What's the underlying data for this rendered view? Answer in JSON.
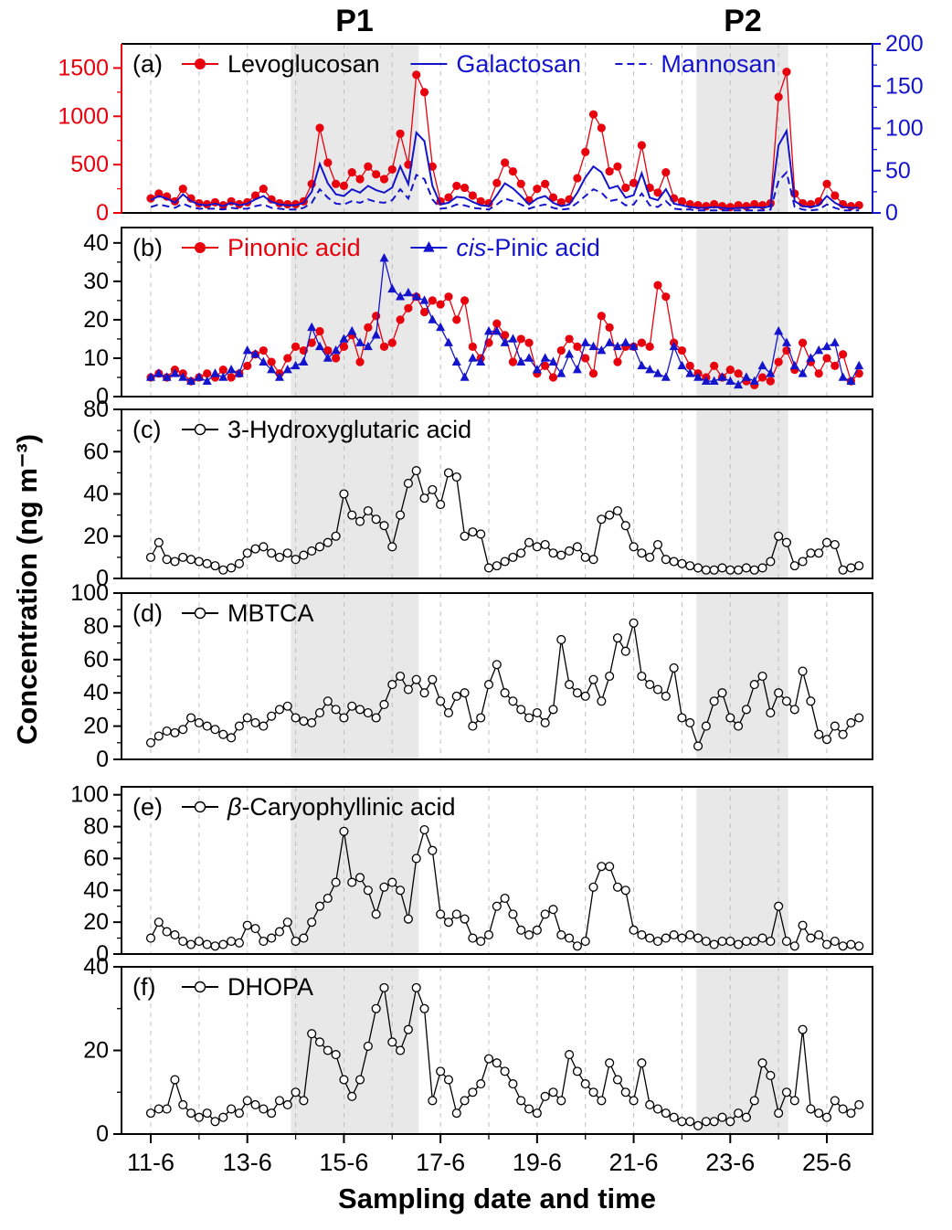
{
  "figure": {
    "p1_label": "P1",
    "p2_label": "P2",
    "y_axis_label": "Concentration (ng m⁻³)",
    "x_axis_label": "Sampling date and time"
  },
  "chart_data": {
    "type": "line",
    "title": "",
    "xlabel": "Sampling date and time",
    "ylabel": "Concentration (ng m⁻³)",
    "x_unit": "days since 11-6",
    "x_tick_labels": [
      "11-6",
      "13-6",
      "15-6",
      "17-6",
      "19-6",
      "21-6",
      "23-6",
      "25-6"
    ],
    "x_tick_days": [
      0,
      2,
      4,
      6,
      8,
      10,
      12,
      14
    ],
    "grid": "vertical-dashed-daily",
    "sampling": {
      "x_start_day": 0,
      "x_step_days": 0.16667,
      "n": 89
    },
    "shaded_periods": [
      {
        "label": "P1",
        "from_day": 2.9,
        "to_day": 5.55
      },
      {
        "label": "P2",
        "from_day": 11.3,
        "to_day": 13.2
      }
    ],
    "colors": {
      "red": "#e8000d",
      "blue": "#1414cc",
      "grid": "#bfbfbf",
      "shade": "#e8e8e8"
    },
    "panels": [
      {
        "id": "a",
        "label": "(a)",
        "ylim": [
          0,
          1750
        ],
        "yticks": [
          0,
          500,
          1000,
          1500
        ],
        "axis_color": "#e8000d",
        "right": {
          "ylim": [
            0,
            200
          ],
          "yticks": [
            0,
            50,
            100,
            150,
            200
          ],
          "color": "#1414cc"
        },
        "series": [
          {
            "name": "Levoglucosan",
            "axis": "left",
            "color": "#e8000d",
            "label_color": "#000000",
            "marker": "circle",
            "line": true,
            "values": [
              150,
              200,
              170,
              120,
              250,
              150,
              100,
              90,
              110,
              80,
              120,
              90,
              110,
              180,
              250,
              140,
              100,
              90,
              90,
              120,
              300,
              880,
              520,
              300,
              280,
              420,
              350,
              480,
              400,
              350,
              450,
              820,
              500,
              1430,
              1250,
              480,
              120,
              160,
              280,
              260,
              180,
              120,
              100,
              310,
              520,
              430,
              300,
              130,
              250,
              300,
              160,
              110,
              140,
              360,
              630,
              1020,
              880,
              430,
              480,
              260,
              310,
              700,
              260,
              210,
              420,
              150,
              120,
              90,
              80,
              70,
              90,
              70,
              60,
              80,
              70,
              90,
              80,
              100,
              1200,
              1460,
              200,
              100,
              90,
              120,
              300,
              180,
              90,
              70,
              80
            ]
          },
          {
            "name": "Galactosan",
            "axis": "right",
            "color": "#1414cc",
            "label_color": "#1414cc",
            "marker": "none",
            "line": true,
            "values": [
              15,
              20,
              17,
              12,
              22,
              14,
              10,
              9,
              11,
              8,
              12,
              9,
              11,
              16,
              20,
              13,
              10,
              9,
              9,
              12,
              25,
              58,
              35,
              22,
              20,
              28,
              24,
              32,
              27,
              24,
              30,
              55,
              34,
              95,
              85,
              32,
              10,
              12,
              19,
              18,
              13,
              9,
              8,
              21,
              35,
              29,
              20,
              10,
              17,
              20,
              12,
              8,
              10,
              24,
              42,
              55,
              48,
              29,
              32,
              18,
              21,
              47,
              18,
              15,
              28,
              11,
              9,
              7,
              6,
              6,
              7,
              6,
              5,
              6,
              6,
              7,
              6,
              8,
              80,
              97,
              14,
              8,
              7,
              9,
              20,
              12,
              7,
              6,
              6
            ]
          },
          {
            "name": "Mannosan",
            "axis": "right",
            "color": "#1414cc",
            "label_color": "#1414cc",
            "marker": "none",
            "line": true,
            "dash": "8,5",
            "values": [
              7,
              10,
              8,
              6,
              11,
              7,
              5,
              5,
              5,
              4,
              6,
              5,
              5,
              8,
              10,
              6,
              5,
              4,
              4,
              6,
              12,
              28,
              18,
              11,
              10,
              14,
              12,
              16,
              13,
              12,
              15,
              28,
              17,
              45,
              40,
              16,
              5,
              6,
              10,
              9,
              6,
              5,
              4,
              10,
              17,
              14,
              10,
              5,
              8,
              10,
              6,
              4,
              5,
              12,
              20,
              28,
              24,
              14,
              16,
              9,
              10,
              23,
              9,
              7,
              14,
              5,
              4,
              4,
              3,
              3,
              3,
              3,
              3,
              3,
              3,
              3,
              3,
              4,
              38,
              48,
              7,
              4,
              3,
              4,
              10,
              6,
              3,
              3,
              3
            ]
          }
        ]
      },
      {
        "id": "b",
        "label": "(b)",
        "ylim": [
          0,
          44
        ],
        "yticks": [
          0,
          10,
          20,
          30,
          40
        ],
        "series": [
          {
            "name": "Pinonic acid",
            "color": "#e8000d",
            "label_color": "#e8000d",
            "marker": "circle",
            "line": true,
            "values": [
              5,
              6,
              5,
              7,
              6,
              4,
              5,
              6,
              5,
              7,
              5,
              6,
              8,
              11,
              12,
              9,
              6,
              10,
              13,
              12,
              14,
              17,
              12,
              10,
              13,
              16,
              9,
              18,
              21,
              13,
              14,
              20,
              23,
              26,
              22,
              25,
              24,
              26,
              20,
              25,
              13,
              10,
              14,
              19,
              16,
              9,
              15,
              14,
              6,
              8,
              5,
              12,
              15,
              13,
              10,
              6,
              21,
              18,
              9,
              13,
              13,
              14,
              13,
              29,
              26,
              14,
              12,
              8,
              6,
              5,
              8,
              5,
              7,
              6,
              4,
              3,
              5,
              4,
              9,
              12,
              7,
              14,
              9,
              6,
              10,
              8,
              11,
              4,
              6
            ]
          },
          {
            "name": "cis-Pinic acid",
            "legend_italic_prefix": "cis",
            "color": "#1414cc",
            "label_color": "#1414cc",
            "marker": "triangle",
            "line": true,
            "values": [
              5,
              6,
              5,
              6,
              5,
              4,
              5,
              4,
              6,
              5,
              7,
              6,
              12,
              11,
              9,
              7,
              5,
              7,
              8,
              9,
              18,
              13,
              10,
              12,
              15,
              17,
              14,
              13,
              16,
              36,
              28,
              26,
              27,
              26,
              25,
              20,
              18,
              14,
              9,
              5,
              10,
              9,
              17,
              17,
              14,
              15,
              9,
              10,
              7,
              10,
              9,
              6,
              11,
              7,
              14,
              13,
              12,
              14,
              13,
              14,
              13,
              8,
              7,
              6,
              5,
              13,
              8,
              6,
              5,
              4,
              4,
              5,
              4,
              3,
              5,
              4,
              8,
              6,
              17,
              14,
              8,
              6,
              10,
              12,
              13,
              14,
              5,
              4,
              8
            ]
          }
        ]
      },
      {
        "id": "c",
        "label": "(c)",
        "ylim": [
          0,
          80
        ],
        "yticks": [
          0,
          20,
          40,
          60,
          80
        ],
        "series": [
          {
            "name": "3-Hydroxyglutaric acid",
            "color": "#000000",
            "label_color": "#000000",
            "marker": "open-circle",
            "line": true,
            "values": [
              10,
              17,
              9,
              8,
              10,
              9,
              8,
              7,
              6,
              4,
              5,
              7,
              12,
              14,
              15,
              12,
              10,
              12,
              9,
              11,
              13,
              15,
              17,
              20,
              40,
              30,
              27,
              32,
              28,
              25,
              15,
              30,
              45,
              51,
              38,
              42,
              35,
              50,
              48,
              20,
              22,
              21,
              5,
              6,
              8,
              10,
              12,
              17,
              15,
              16,
              12,
              11,
              13,
              15,
              10,
              9,
              28,
              30,
              32,
              25,
              15,
              12,
              10,
              16,
              9,
              8,
              7,
              6,
              5,
              4,
              4,
              5,
              4,
              4,
              5,
              4,
              5,
              8,
              20,
              17,
              6,
              8,
              12,
              12,
              17,
              16,
              4,
              5,
              6
            ]
          }
        ]
      },
      {
        "id": "d",
        "label": "(d)",
        "ylim": [
          0,
          100
        ],
        "yticks": [
          0,
          20,
          40,
          60,
          80,
          100
        ],
        "series": [
          {
            "name": "MBTCA",
            "color": "#000000",
            "label_color": "#000000",
            "marker": "open-circle",
            "line": true,
            "values": [
              10,
              14,
              17,
              16,
              18,
              25,
              22,
              20,
              18,
              15,
              13,
              20,
              25,
              22,
              20,
              26,
              30,
              32,
              25,
              23,
              22,
              28,
              35,
              30,
              25,
              32,
              30,
              28,
              25,
              33,
              45,
              50,
              42,
              48,
              40,
              48,
              35,
              28,
              38,
              40,
              20,
              25,
              45,
              57,
              40,
              35,
              30,
              25,
              28,
              22,
              30,
              72,
              45,
              40,
              38,
              48,
              35,
              50,
              73,
              65,
              82,
              50,
              45,
              42,
              38,
              55,
              25,
              22,
              8,
              20,
              35,
              40,
              25,
              20,
              30,
              45,
              50,
              28,
              40,
              35,
              30,
              53,
              35,
              15,
              12,
              20,
              15,
              22,
              25
            ]
          }
        ]
      },
      {
        "id": "e",
        "label": "(e)",
        "ylim": [
          0,
          105
        ],
        "yticks": [
          0,
          20,
          40,
          60,
          80,
          100
        ],
        "series": [
          {
            "name": "β-Caryophyllinic acid",
            "legend_italic_prefix": "β",
            "color": "#000000",
            "label_color": "#000000",
            "marker": "open-circle",
            "line": true,
            "values": [
              10,
              20,
              14,
              12,
              8,
              6,
              8,
              6,
              5,
              6,
              8,
              7,
              18,
              16,
              8,
              10,
              14,
              20,
              8,
              10,
              20,
              30,
              35,
              45,
              77,
              45,
              48,
              40,
              25,
              42,
              45,
              40,
              22,
              60,
              78,
              65,
              25,
              20,
              25,
              22,
              10,
              8,
              12,
              30,
              35,
              25,
              15,
              12,
              15,
              25,
              28,
              12,
              10,
              5,
              8,
              42,
              55,
              55,
              42,
              40,
              15,
              12,
              10,
              8,
              10,
              12,
              10,
              12,
              10,
              8,
              6,
              8,
              8,
              6,
              8,
              8,
              10,
              8,
              30,
              8,
              5,
              18,
              10,
              12,
              6,
              8,
              5,
              6,
              5
            ]
          }
        ]
      },
      {
        "id": "f",
        "label": "(f)",
        "ylim": [
          0,
          40
        ],
        "yticks": [
          0,
          20,
          40
        ],
        "series": [
          {
            "name": "DHOPA",
            "color": "#000000",
            "label_color": "#000000",
            "marker": "open-circle",
            "line": true,
            "values": [
              5,
              6,
              6,
              13,
              7,
              5,
              4,
              5,
              3,
              4,
              6,
              5,
              8,
              7,
              6,
              5,
              8,
              7,
              10,
              8,
              24,
              22,
              20,
              19,
              13,
              9,
              13,
              21,
              30,
              35,
              22,
              20,
              25,
              35,
              30,
              8,
              15,
              13,
              5,
              8,
              10,
              12,
              18,
              17,
              15,
              12,
              8,
              6,
              5,
              9,
              10,
              8,
              19,
              15,
              12,
              10,
              8,
              17,
              13,
              10,
              8,
              17,
              7,
              6,
              5,
              4,
              3,
              3,
              2,
              3,
              3,
              4,
              3,
              5,
              4,
              8,
              17,
              14,
              5,
              10,
              8,
              25,
              6,
              5,
              4,
              8,
              6,
              5,
              7
            ]
          }
        ]
      }
    ]
  }
}
